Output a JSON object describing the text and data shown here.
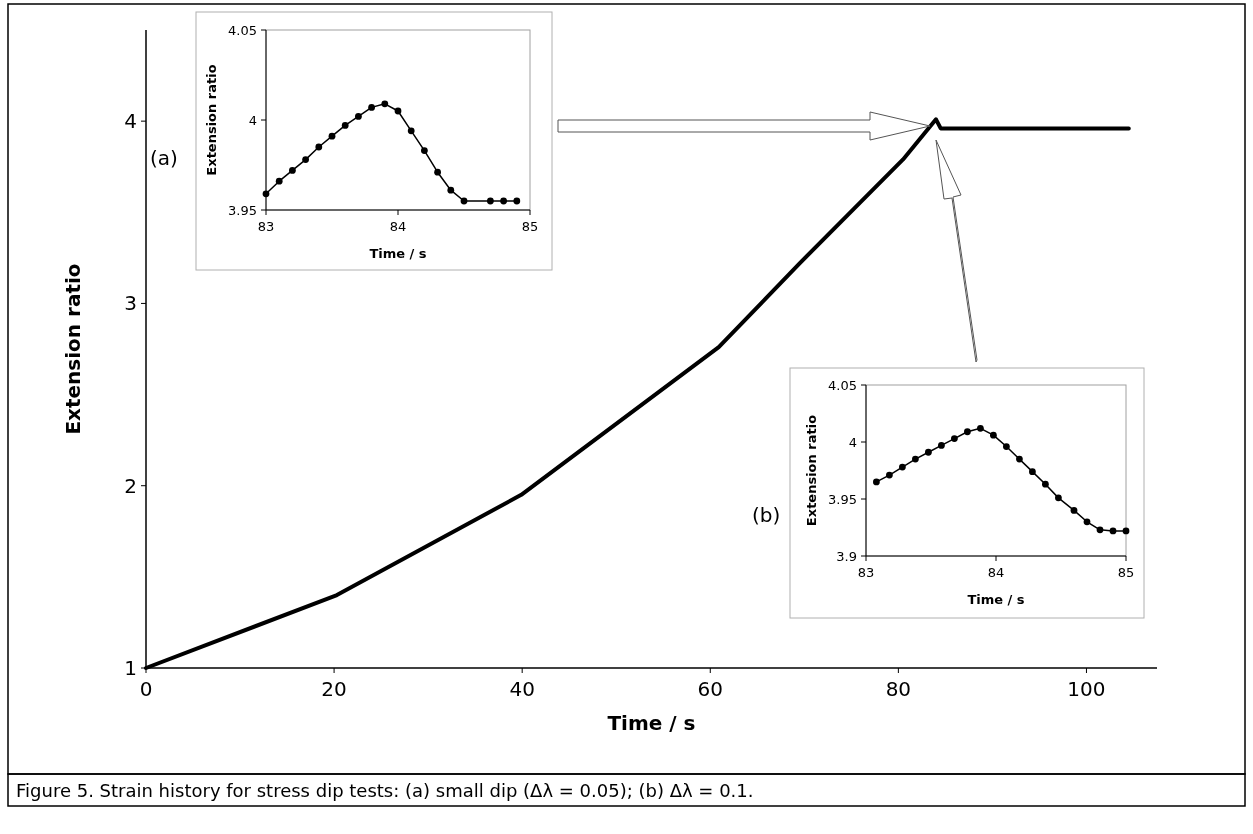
{
  "chart_data": [
    {
      "type": "line",
      "xlabel": "Time / s",
      "ylabel": "Extension ratio",
      "x": [
        0,
        20.3,
        39.9,
        60.9,
        69.5,
        80.5,
        84,
        84.5,
        104.5
      ],
      "values": [
        1,
        1.4,
        1.95,
        2.76,
        3.22,
        3.79,
        4.01,
        3.96,
        3.96
      ],
      "color": "#000000",
      "xlim": [
        0,
        107.5
      ],
      "ylim": [
        1,
        4.5
      ],
      "xticks": [
        0,
        20,
        40,
        60,
        80,
        100
      ],
      "yticks": [
        1,
        2,
        3,
        4
      ],
      "grid": false,
      "marker": "none",
      "annotations": [
        "Figure 5. Strain history for stress dip tests: (a) small dip (Δλ = 0.05); (b) Δλ = 0.1."
      ]
    },
    {
      "type": "line",
      "xlabel": "Time / s",
      "ylabel": "Extension ratio",
      "x": [
        83,
        83.1,
        83.2,
        83.3,
        83.4,
        83.5,
        83.6,
        83.7,
        83.8,
        83.9,
        84,
        84.1,
        84.2,
        84.3,
        84.4,
        84.5,
        84.7,
        84.8,
        84.9
      ],
      "values": [
        3.959,
        3.966,
        3.972,
        3.978,
        3.985,
        3.991,
        3.997,
        4.002,
        4.007,
        4.009,
        4.005,
        3.994,
        3.983,
        3.971,
        3.961,
        3.955,
        3.955,
        3.955,
        3.955
      ],
      "color": "#000000",
      "xlim": [
        83,
        85
      ],
      "ylim": [
        3.95,
        4.05
      ],
      "xticks": [
        83,
        84,
        85
      ],
      "yticks": [
        3.95,
        4,
        4.05
      ],
      "grid": false,
      "marker": "circle",
      "annotations": [
        "(a)"
      ]
    },
    {
      "type": "line",
      "xlabel": "Time / s",
      "ylabel": "Extension ratio",
      "x": [
        83.08,
        83.18,
        83.28,
        83.38,
        83.48,
        83.58,
        83.68,
        83.78,
        83.88,
        83.98,
        84.08,
        84.18,
        84.28,
        84.38,
        84.48,
        84.6,
        84.7,
        84.8,
        84.9,
        85
      ],
      "values": [
        3.965,
        3.971,
        3.978,
        3.985,
        3.991,
        3.997,
        4.003,
        4.009,
        4.012,
        4.006,
        3.996,
        3.985,
        3.974,
        3.963,
        3.951,
        3.94,
        3.93,
        3.923,
        3.922,
        3.922
      ],
      "color": "#000000",
      "xlim": [
        83,
        85
      ],
      "ylim": [
        3.9,
        4.05
      ],
      "xticks": [
        83,
        84,
        85
      ],
      "yticks": [
        3.9,
        3.95,
        4,
        4.05
      ],
      "grid": false,
      "marker": "circle",
      "annotations": [
        "(b)"
      ]
    }
  ]
}
